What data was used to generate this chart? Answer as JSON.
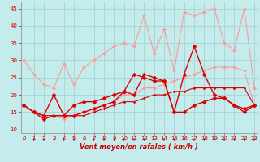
{
  "xlabel": "Vent moyen/en rafales ( km/h )",
  "background_color": "#c5eced",
  "grid_color": "#a8d4d6",
  "x": [
    0,
    1,
    2,
    3,
    4,
    5,
    6,
    7,
    8,
    9,
    10,
    11,
    12,
    13,
    14,
    15,
    16,
    17,
    18,
    19,
    20,
    21,
    22,
    23
  ],
  "series": [
    {
      "y": [
        30,
        26,
        23,
        22,
        29,
        23,
        28,
        30,
        32,
        34,
        35,
        34,
        43,
        32,
        39,
        27,
        44,
        43,
        44,
        45,
        35,
        33,
        45,
        22
      ],
      "color": "#ff9999",
      "lw": 0.8,
      "ms": 2.0,
      "zorder": 2
    },
    {
      "y": [
        17,
        15,
        13,
        14,
        13,
        14,
        15,
        16,
        17,
        18,
        20,
        20,
        22,
        22,
        23,
        24,
        25,
        26,
        27,
        28,
        28,
        28,
        27,
        17
      ],
      "color": "#ff9999",
      "lw": 0.8,
      "ms": 2.0,
      "zorder": 2
    },
    {
      "y": [
        17,
        15,
        13,
        14,
        14,
        14,
        15,
        16,
        17,
        18,
        21,
        20,
        26,
        25,
        24,
        15,
        26,
        34,
        26,
        20,
        19,
        17,
        15,
        17
      ],
      "color": "#dd0000",
      "lw": 1.0,
      "ms": 2.5,
      "zorder": 3
    },
    {
      "y": [
        17,
        15,
        14,
        20,
        14,
        17,
        18,
        18,
        19,
        20,
        21,
        26,
        25,
        24,
        24,
        15,
        15,
        17,
        18,
        19,
        19,
        17,
        16,
        17
      ],
      "color": "#dd0000",
      "lw": 1.0,
      "ms": 2.5,
      "zorder": 3
    },
    {
      "y": [
        17,
        15,
        14,
        14,
        14,
        14,
        14,
        15,
        16,
        17,
        18,
        18,
        19,
        20,
        20,
        21,
        21,
        22,
        22,
        22,
        22,
        22,
        22,
        17
      ],
      "color": "#dd0000",
      "lw": 0.8,
      "ms": 1.5,
      "zorder": 3
    }
  ],
  "xlim": [
    -0.3,
    23.3
  ],
  "ylim": [
    9,
    47
  ],
  "yticks": [
    10,
    15,
    20,
    25,
    30,
    35,
    40,
    45
  ],
  "xticks": [
    0,
    1,
    2,
    3,
    4,
    5,
    6,
    7,
    8,
    9,
    10,
    11,
    12,
    13,
    14,
    15,
    16,
    17,
    18,
    19,
    20,
    21,
    22,
    23
  ],
  "xlabel_fontsize": 6.0,
  "tick_labelsize": 5.0,
  "spine_color": "#888888"
}
